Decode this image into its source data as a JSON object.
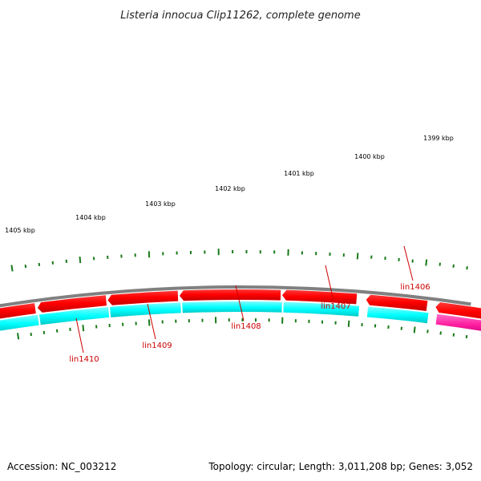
{
  "title": "Listeria innocua Clip11262, complete genome",
  "footer": {
    "accession": "Accession: NC_003212",
    "topology": "Topology: circular; Length: 3,011,208 bp; Genes: 3,052"
  },
  "colors": {
    "backbone": "#808080",
    "ticks": "#1a7a1a",
    "cds_forward": "#ff0000",
    "cds_reverse": "#00ffff",
    "other_feature": "#ff1fa0",
    "label_text": "#cc0000"
  },
  "scale_labels": [
    "1405 kbp",
    "1404 kbp",
    "1403 kbp",
    "1402 kbp",
    "1401 kbp",
    "1400 kbp",
    "1399 kbp"
  ],
  "gene_labels": [
    "lin1410",
    "lin1409",
    "lin1408",
    "lin1407",
    "lin1406"
  ]
}
